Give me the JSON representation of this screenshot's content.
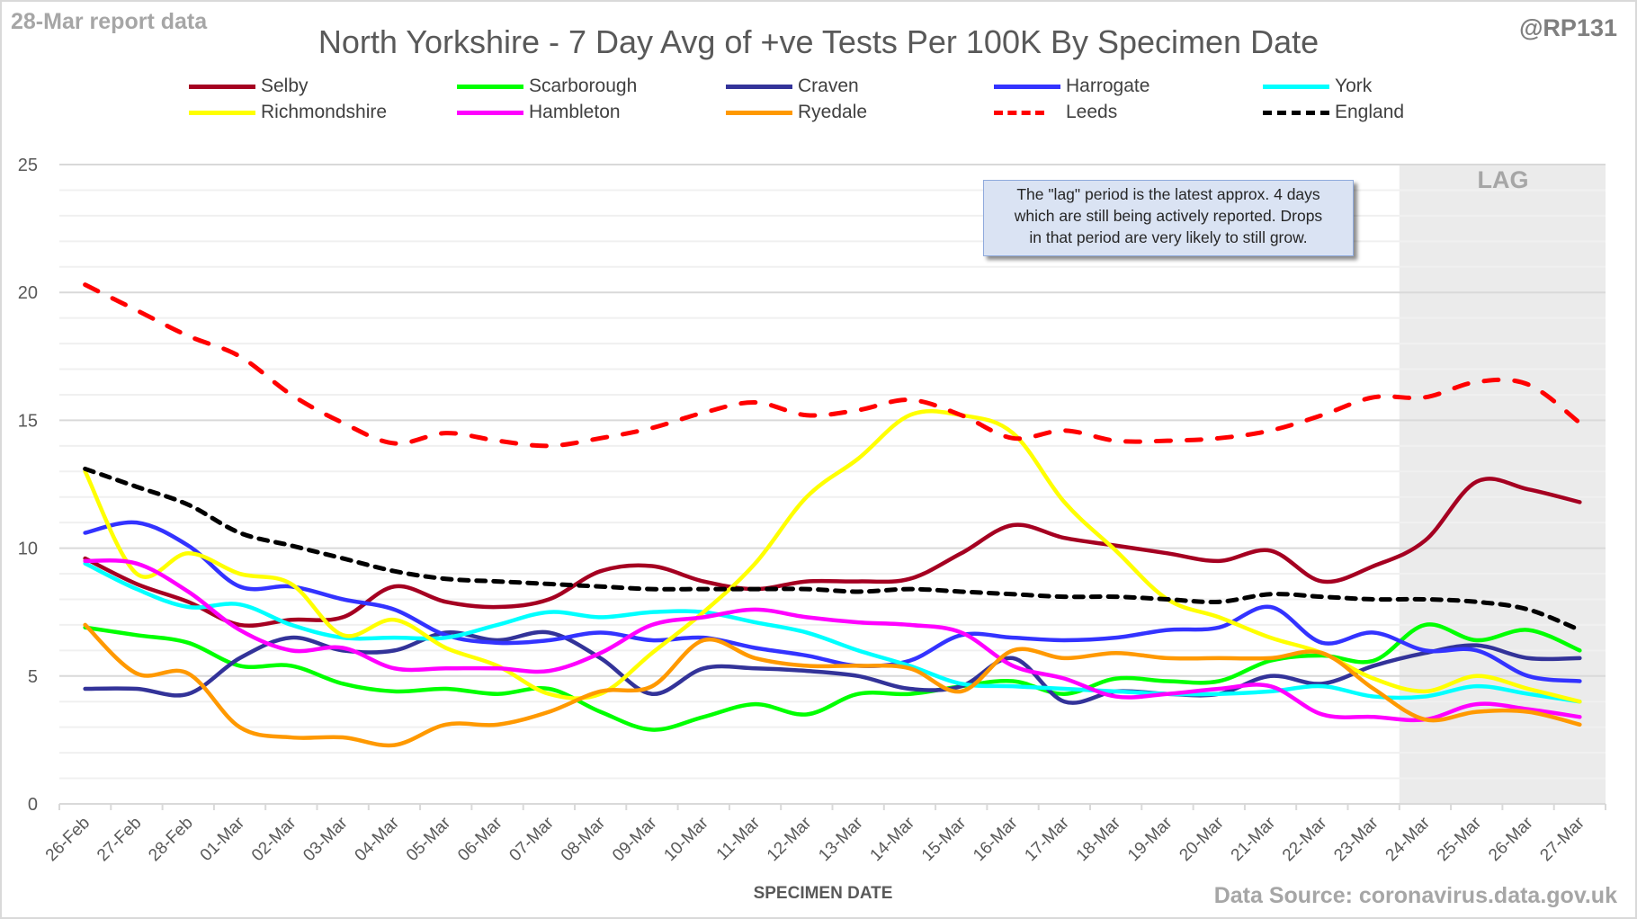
{
  "header": {
    "report_label": "28-Mar report data",
    "handle": "@RP131"
  },
  "annotations": {
    "lag_label": "LAG",
    "note_lines": [
      "The \"lag\" period is the latest approx. 4 days",
      "which are still being actively reported.  Drops",
      "in that period are very likely to still grow."
    ],
    "source": "Data Source: coronavirus.data.gov.uk"
  },
  "chart_data": {
    "type": "line",
    "title": "North Yorkshire - 7 Day Avg of +ve Tests Per 100K By Specimen Date",
    "xlabel": "SPECIMEN DATE",
    "ylabel": "",
    "ylim": [
      0,
      25
    ],
    "yticks": [
      0,
      5,
      10,
      15,
      20,
      25
    ],
    "grid": true,
    "legend_position": "top",
    "lag_region": {
      "from": "24-Mar",
      "to": "27-Mar"
    },
    "x": [
      "26-Feb",
      "27-Feb",
      "28-Feb",
      "01-Mar",
      "02-Mar",
      "03-Mar",
      "04-Mar",
      "05-Mar",
      "06-Mar",
      "07-Mar",
      "08-Mar",
      "09-Mar",
      "10-Mar",
      "11-Mar",
      "12-Mar",
      "13-Mar",
      "14-Mar",
      "15-Mar",
      "16-Mar",
      "17-Mar",
      "18-Mar",
      "19-Mar",
      "20-Mar",
      "21-Mar",
      "22-Mar",
      "23-Mar",
      "24-Mar",
      "25-Mar",
      "26-Mar",
      "27-Mar"
    ],
    "series": [
      {
        "name": "Selby",
        "color": "#a50021",
        "dash": false,
        "values": [
          9.6,
          8.6,
          7.9,
          7.0,
          7.2,
          7.3,
          8.5,
          7.9,
          7.7,
          8.0,
          9.1,
          9.3,
          8.7,
          8.4,
          8.7,
          8.7,
          8.8,
          9.8,
          10.9,
          10.4,
          10.1,
          9.8,
          9.5,
          9.9,
          8.7,
          9.3,
          10.3,
          12.6,
          12.3,
          11.8
        ]
      },
      {
        "name": "Scarborough",
        "color": "#00ff00",
        "dash": false,
        "values": [
          6.9,
          6.6,
          6.3,
          5.4,
          5.4,
          4.7,
          4.4,
          4.5,
          4.3,
          4.5,
          3.6,
          2.9,
          3.4,
          3.9,
          3.5,
          4.3,
          4.3,
          4.6,
          4.8,
          4.3,
          4.9,
          4.8,
          4.8,
          5.6,
          5.8,
          5.6,
          7.0,
          6.4,
          6.8,
          6.0
        ]
      },
      {
        "name": "Craven",
        "color": "#333399",
        "dash": false,
        "values": [
          4.5,
          4.5,
          4.3,
          5.7,
          6.5,
          6.0,
          6.0,
          6.7,
          6.4,
          6.7,
          5.7,
          4.3,
          5.3,
          5.3,
          5.2,
          5.0,
          4.5,
          4.6,
          5.7,
          4.0,
          4.4,
          4.3,
          4.3,
          5.0,
          4.7,
          5.4,
          5.9,
          6.2,
          5.7,
          5.7
        ]
      },
      {
        "name": "Harrogate",
        "color": "#3333ff",
        "dash": false,
        "values": [
          10.6,
          11.0,
          10.1,
          8.5,
          8.5,
          8.0,
          7.6,
          6.6,
          6.3,
          6.4,
          6.7,
          6.4,
          6.5,
          6.1,
          5.8,
          5.4,
          5.6,
          6.6,
          6.5,
          6.4,
          6.5,
          6.8,
          6.9,
          7.7,
          6.3,
          6.7,
          6.0,
          6.0,
          5.0,
          4.8
        ]
      },
      {
        "name": "York",
        "color": "#00ffff",
        "dash": false,
        "values": [
          9.4,
          8.4,
          7.7,
          7.8,
          7.0,
          6.5,
          6.5,
          6.5,
          7.0,
          7.5,
          7.3,
          7.5,
          7.5,
          7.1,
          6.7,
          6.0,
          5.4,
          4.7,
          4.6,
          4.5,
          4.4,
          4.3,
          4.3,
          4.4,
          4.6,
          4.2,
          4.2,
          4.6,
          4.3,
          4.0
        ]
      },
      {
        "name": "Richmondshire",
        "color": "#ffff00",
        "dash": false,
        "values": [
          13.0,
          9.0,
          9.8,
          9.0,
          8.6,
          6.6,
          7.2,
          6.1,
          5.4,
          4.3,
          4.3,
          5.9,
          7.5,
          9.4,
          12.0,
          13.5,
          15.2,
          15.2,
          14.5,
          11.8,
          9.9,
          8.0,
          7.3,
          6.5,
          5.9,
          4.9,
          4.4,
          5.0,
          4.5,
          4.0
        ]
      },
      {
        "name": "Hambleton",
        "color": "#ff00ff",
        "dash": false,
        "values": [
          9.5,
          9.4,
          8.3,
          6.8,
          6.0,
          6.1,
          5.3,
          5.3,
          5.3,
          5.2,
          5.9,
          7.0,
          7.3,
          7.6,
          7.3,
          7.1,
          7.0,
          6.7,
          5.4,
          4.9,
          4.2,
          4.3,
          4.5,
          4.6,
          3.5,
          3.4,
          3.3,
          3.9,
          3.7,
          3.4
        ]
      },
      {
        "name": "Ryedale",
        "color": "#ff9900",
        "dash": false,
        "values": [
          7.0,
          5.1,
          5.1,
          3.0,
          2.6,
          2.6,
          2.3,
          3.1,
          3.1,
          3.6,
          4.4,
          4.6,
          6.4,
          5.7,
          5.4,
          5.4,
          5.3,
          4.4,
          6.0,
          5.7,
          5.9,
          5.7,
          5.7,
          5.7,
          5.9,
          4.5,
          3.3,
          3.6,
          3.6,
          3.1
        ]
      },
      {
        "name": "Leeds",
        "color": "#ff0000",
        "dash": true,
        "values": [
          20.3,
          19.3,
          18.3,
          17.5,
          16.0,
          14.9,
          14.1,
          14.5,
          14.2,
          14.0,
          14.3,
          14.7,
          15.3,
          15.7,
          15.2,
          15.4,
          15.8,
          15.2,
          14.3,
          14.6,
          14.2,
          14.2,
          14.3,
          14.6,
          15.2,
          15.9,
          15.9,
          16.5,
          16.4,
          14.9
        ]
      },
      {
        "name": "England",
        "color": "#000000",
        "dash": true,
        "values": [
          13.1,
          12.4,
          11.7,
          10.6,
          10.1,
          9.6,
          9.1,
          8.8,
          8.7,
          8.6,
          8.5,
          8.4,
          8.4,
          8.4,
          8.4,
          8.3,
          8.4,
          8.3,
          8.2,
          8.1,
          8.1,
          8.0,
          7.9,
          8.2,
          8.1,
          8.0,
          8.0,
          7.9,
          7.6,
          6.8
        ]
      }
    ]
  }
}
